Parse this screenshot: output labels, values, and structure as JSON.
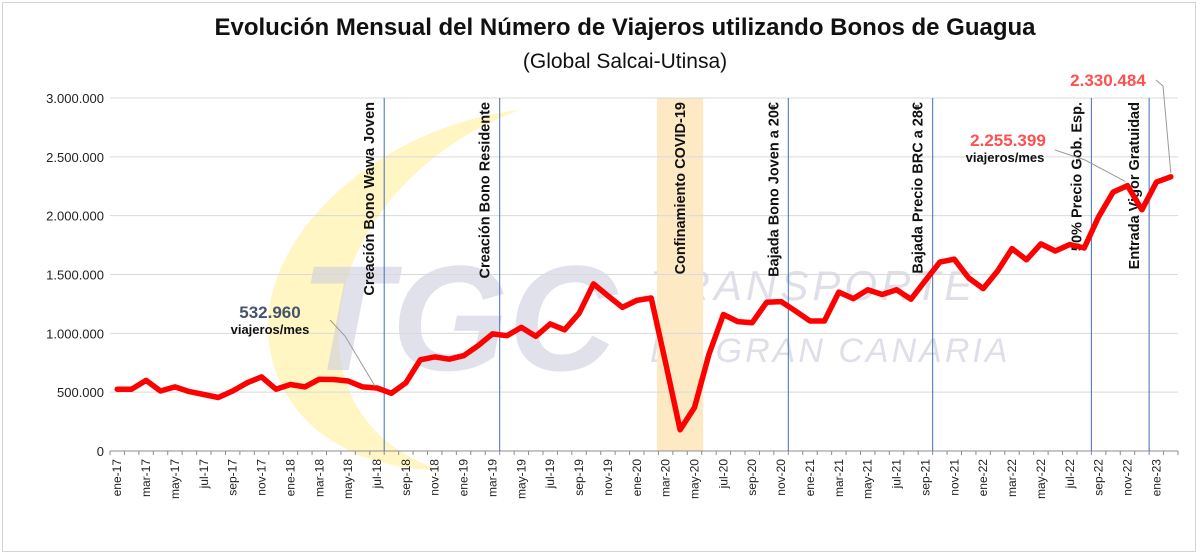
{
  "chart_data": {
    "type": "line",
    "title": "Evolución Mensual del Número de Viajeros utilizando Bonos de Guagua",
    "subtitle": "(Global Salcai-Utinsa)",
    "ylim": [
      0,
      3000000
    ],
    "yticks": [
      "0",
      "500.000",
      "1.000.000",
      "1.500.000",
      "2.000.000",
      "2.500.000",
      "3.000.000"
    ],
    "ytick_values": [
      0,
      500000,
      1000000,
      1500000,
      2000000,
      2500000,
      3000000
    ],
    "grid": true,
    "x_start": "2017-01",
    "x_tick_labels": [
      "ene-17",
      "mar-17",
      "may-17",
      "jul-17",
      "sep-17",
      "nov-17",
      "ene-18",
      "mar-18",
      "may-18",
      "jul-18",
      "sep-18",
      "nov-18",
      "ene-19",
      "mar-19",
      "may-19",
      "jul-19",
      "sep-19",
      "nov-19",
      "ene-20",
      "mar-20",
      "may-20",
      "jul-20",
      "sep-20",
      "nov-20",
      "ene-21",
      "mar-21",
      "may-21",
      "jul-21",
      "sep-21",
      "nov-21",
      "ene-22",
      "mar-22",
      "may-22",
      "jul-22",
      "sep-22",
      "nov-22",
      "ene-23"
    ],
    "series": [
      {
        "color": "#ff0000",
        "values": [
          525000,
          525000,
          600000,
          510000,
          545000,
          505000,
          480000,
          455000,
          510000,
          580000,
          630000,
          525000,
          565000,
          545000,
          610000,
          608000,
          595000,
          545000,
          535000,
          490000,
          580000,
          775000,
          800000,
          780000,
          810000,
          895000,
          995000,
          980000,
          1050000,
          975000,
          1080000,
          1030000,
          1170000,
          1420000,
          1320000,
          1220000,
          1280000,
          1300000,
          750000,
          180000,
          370000,
          820000,
          1160000,
          1100000,
          1090000,
          1265000,
          1270000,
          1190000,
          1105000,
          1105000,
          1350000,
          1295000,
          1370000,
          1330000,
          1370000,
          1290000,
          1450000,
          1605000,
          1630000,
          1470000,
          1380000,
          1530000,
          1720000,
          1625000,
          1760000,
          1700000,
          1755000,
          1725000,
          1990000,
          2200000,
          2255399,
          2050000,
          2285000,
          2330484
        ]
      }
    ],
    "events": [
      {
        "label": "Creación Bono Wawa Joven",
        "month": "2018-08"
      },
      {
        "label": "Creación Bono Residente",
        "month": "2019-04"
      },
      {
        "label": "Bajada Bono Joven a 20€",
        "month": "2020-12"
      },
      {
        "label": "Bajada Precio BRC a 28€",
        "month": "2021-10"
      },
      {
        "label": "50% Precio Gob. Esp.",
        "month": "2022-09"
      },
      {
        "label": "Entrada Vigor Gratuidad",
        "month": "2023-01"
      }
    ],
    "highlight_period": {
      "label": "Confinamiento COVID-19",
      "from": "2020-03",
      "to": "2020-05"
    },
    "annotations": [
      {
        "value_text": "532.960",
        "unit": "viajeros/mes",
        "color": "#44546a",
        "month": "2018-07"
      },
      {
        "value_text": "2.255.399",
        "unit": "viajeros/mes",
        "color": "#ff5050",
        "month": "2022-11"
      },
      {
        "value_text": "2.330.484",
        "unit": "",
        "color": "#ff5050",
        "month": "2023-02"
      }
    ]
  },
  "watermark": {
    "logo": "TGC",
    "line1": "TRANSPORTE",
    "line2": "DE GRAN CANARIA"
  }
}
